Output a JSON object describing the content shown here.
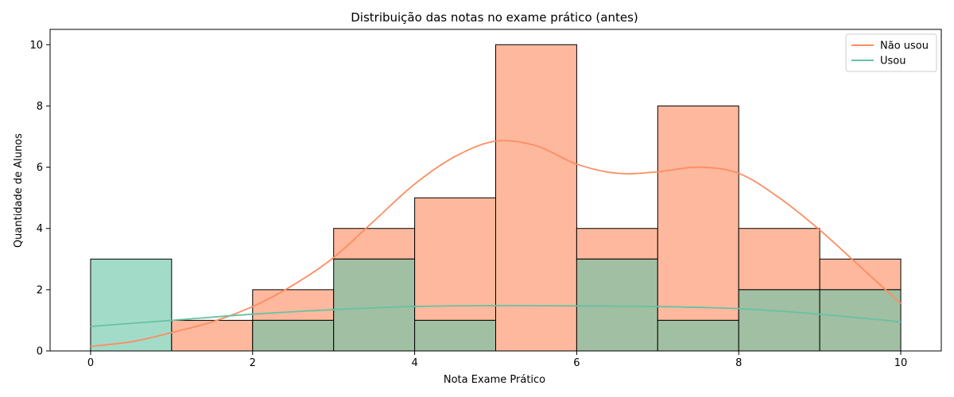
{
  "chart_data": {
    "type": "bar",
    "title": "Distribuição das notas no exame prático (antes)",
    "xlabel": "Nota Exame Prático",
    "ylabel": "Quantidade de Alunos",
    "xlim": [
      -0.5,
      10.5
    ],
    "ylim": [
      0,
      10.5
    ],
    "xticks": [
      0,
      2,
      4,
      6,
      8,
      10
    ],
    "yticks": [
      0,
      2,
      4,
      6,
      8,
      10
    ],
    "bin_edges": [
      0,
      1,
      2,
      3,
      4,
      5,
      6,
      7,
      8,
      9,
      10
    ],
    "grid": false,
    "legend_position": "top-right",
    "series": [
      {
        "name": "Não usou",
        "color": "#fc8d62",
        "fill": "#fdb89d",
        "values": [
          0,
          1,
          2,
          4,
          5,
          10,
          4,
          8,
          4,
          3
        ],
        "kde": {
          "x": [
            0,
            0.5,
            1,
            1.5,
            2,
            2.5,
            3,
            3.5,
            4,
            4.5,
            5,
            5.5,
            6,
            6.5,
            7,
            7.5,
            8,
            8.5,
            9,
            9.5,
            10
          ],
          "y": [
            0.15,
            0.3,
            0.6,
            0.95,
            1.45,
            2.15,
            3.05,
            4.25,
            5.45,
            6.35,
            6.85,
            6.7,
            6.1,
            5.8,
            5.85,
            6.0,
            5.8,
            5.0,
            3.95,
            2.75,
            1.55
          ]
        }
      },
      {
        "name": "Usou",
        "color": "#66c2a5",
        "fill": "#a3dbc9",
        "values": [
          3,
          0,
          1,
          3,
          1,
          0,
          3,
          1,
          2,
          2
        ],
        "kde": {
          "x": [
            0,
            1,
            2,
            3,
            4,
            5,
            6,
            7,
            8,
            9,
            10
          ],
          "y": [
            0.8,
            1.0,
            1.2,
            1.35,
            1.45,
            1.48,
            1.47,
            1.45,
            1.38,
            1.2,
            0.95
          ]
        }
      }
    ]
  }
}
